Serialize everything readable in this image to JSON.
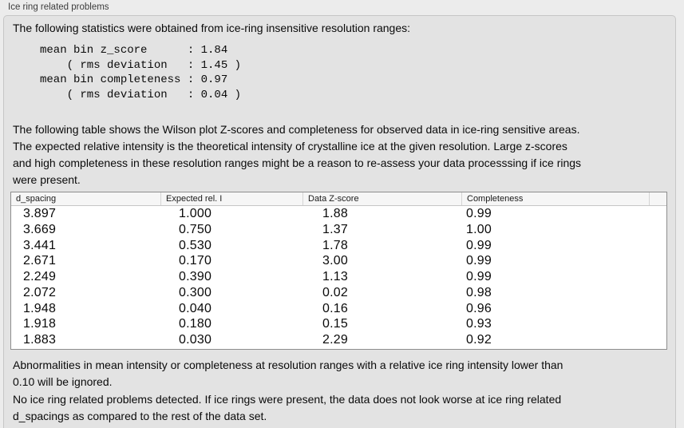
{
  "panel": {
    "title": "Ice ring related problems",
    "intro": "The following statistics were obtained from ice-ring insensitive resolution ranges:",
    "description": "The following table shows the Wilson plot Z-scores and completeness for observed data in ice-ring sensitive areas.\nThe expected relative intensity is the theoretical intensity of crystalline ice at the given resolution. Large z-scores\nand high completeness in these resolution ranges might be a reason to re-assess your data processsing if ice rings\nwere present.",
    "note_ignored": "Abnormalities in mean intensity or completeness at resolution ranges with a relative ice ring intensity lower than\n0.10 will be ignored.",
    "conclusion": "No ice ring related problems detected. If ice rings were present, the data does not look worse at ice ring related\nd_spacings as compared to the rest of the data set."
  },
  "stats": {
    "lines": [
      "mean bin z_score      : 1.84",
      "    ( rms deviation   : 1.45 )",
      "mean bin completeness : 0.97",
      "    ( rms deviation   : 0.04 )"
    ],
    "mean_bin_z_score": "1.84",
    "z_score_rms_deviation": "1.45",
    "mean_bin_completeness": "0.97",
    "completeness_rms_deviation": "0.04"
  },
  "table": {
    "columns": [
      "d_spacing",
      "Expected rel. I",
      "Data Z-score",
      "Completeness"
    ],
    "rows": [
      [
        "3.897",
        "1.000",
        "1.88",
        "0.99"
      ],
      [
        "3.669",
        "0.750",
        "1.37",
        "1.00"
      ],
      [
        "3.441",
        "0.530",
        "1.78",
        "0.99"
      ],
      [
        "2.671",
        "0.170",
        "3.00",
        "0.99"
      ],
      [
        "2.249",
        "0.390",
        "1.13",
        "0.99"
      ],
      [
        "2.072",
        "0.300",
        "0.02",
        "0.98"
      ],
      [
        "1.948",
        "0.040",
        "0.16",
        "0.96"
      ],
      [
        "1.918",
        "0.180",
        "0.15",
        "0.93"
      ],
      [
        "1.883",
        "0.030",
        "2.29",
        "0.92"
      ]
    ]
  },
  "colors": {
    "page_bg": "#ececec",
    "box_bg": "#e3e3e3",
    "box_border": "#c6c6c6",
    "table_border": "#8e8e8e",
    "header_bg": "#f6f6f6",
    "header_sep": "#d4d4d4",
    "title_color": "#3c3c3c",
    "text_color": "#0a0a0a"
  }
}
